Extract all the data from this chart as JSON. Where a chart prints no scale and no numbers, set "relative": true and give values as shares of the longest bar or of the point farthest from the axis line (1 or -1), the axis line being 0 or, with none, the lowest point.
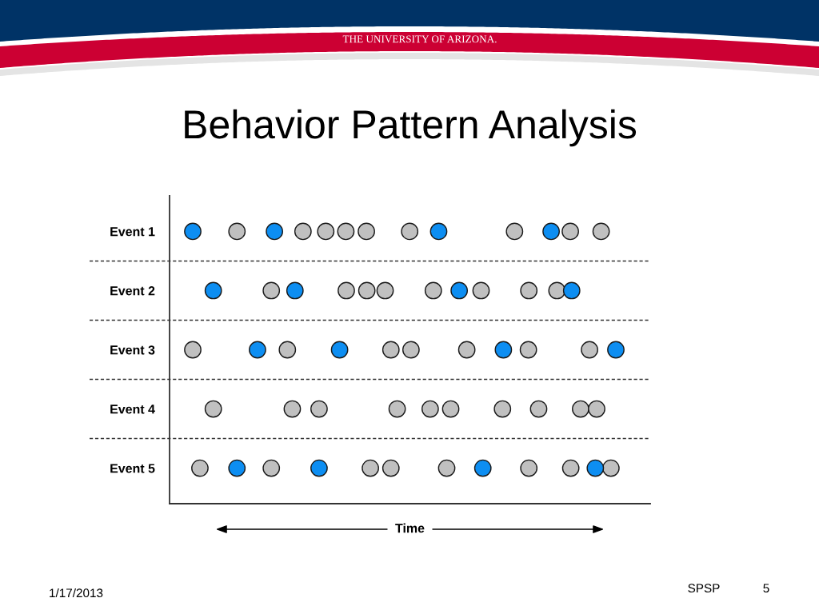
{
  "chart_data": {
    "type": "scatter",
    "orientation": "horizontal",
    "relative": true,
    "title": "Behavior Pattern Analysis",
    "xlabel": "Time",
    "categories": [
      "Event 1",
      "Event 2",
      "Event 3",
      "Event 4",
      "Event 5"
    ],
    "grid": "y",
    "marker": "circle",
    "series": [
      {
        "color": "#c0c0c0",
        "x": [
          "Event 1",
          "Event 1",
          "Event 1",
          "Event 1",
          "Event 1",
          "Event 1",
          "Event 1",
          "Event 1",
          "Event 1",
          "Event 2",
          "Event 2",
          "Event 2",
          "Event 2",
          "Event 2",
          "Event 2",
          "Event 2",
          "Event 2",
          "Event 3",
          "Event 3",
          "Event 3",
          "Event 3",
          "Event 3",
          "Event 3",
          "Event 3",
          "Event 4",
          "Event 4",
          "Event 4",
          "Event 4",
          "Event 4",
          "Event 4",
          "Event 4",
          "Event 4",
          "Event 4",
          "Event 4",
          "Event 5",
          "Event 5",
          "Event 5",
          "Event 5",
          "Event 5",
          "Event 5",
          "Event 5",
          "Event 5"
        ],
        "values": [
          0.151,
          0.299,
          0.35,
          0.395,
          0.441,
          0.538,
          0.773,
          0.898,
          0.967,
          0.228,
          0.396,
          0.442,
          0.483,
          0.591,
          0.698,
          0.805,
          0.868,
          0.052,
          0.264,
          0.496,
          0.541,
          0.666,
          0.804,
          0.941,
          0.098,
          0.275,
          0.335,
          0.51,
          0.584,
          0.63,
          0.746,
          0.827,
          0.921,
          0.957,
          0.068,
          0.228,
          0.45,
          0.496,
          0.621,
          0.805,
          0.899,
          0.989
        ]
      },
      {
        "color": "#0d8ef2",
        "x": [
          "Event 1",
          "Event 1",
          "Event 1",
          "Event 1",
          "Event 2",
          "Event 2",
          "Event 2",
          "Event 2",
          "Event 3",
          "Event 3",
          "Event 3",
          "Event 3",
          "Event 5",
          "Event 5",
          "Event 5",
          "Event 5"
        ],
        "values": [
          0.052,
          0.235,
          0.603,
          0.855,
          0.098,
          0.281,
          0.649,
          0.901,
          0.197,
          0.381,
          0.748,
          1.0,
          0.151,
          0.335,
          0.702,
          0.954
        ]
      }
    ],
    "annotations": [
      "THE UNIVERSITY OF ARIZONA.",
      "1/17/2013",
      "SPSP",
      "5"
    ]
  }
}
